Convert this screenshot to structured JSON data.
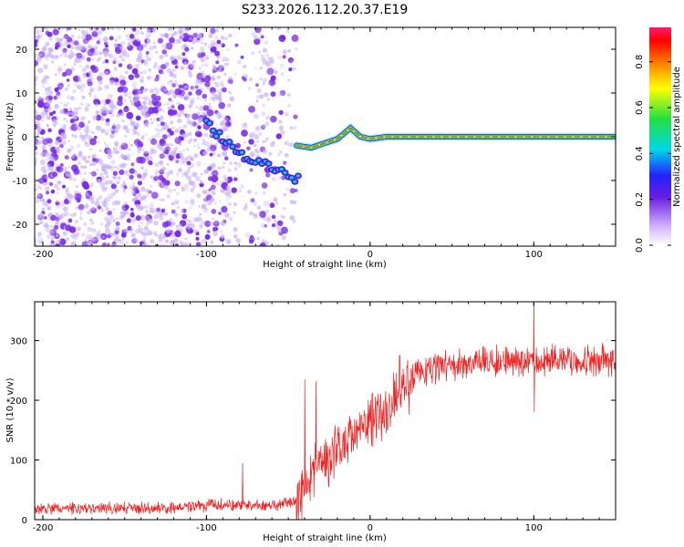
{
  "title": "S233.2026.112.20.37.E19",
  "colors": {
    "snr_line": "#ee2222",
    "dots": "#7a2ae8",
    "dots_light": "#c9b3f5",
    "ridge_hot": "#ee2222",
    "ridge_mid": "#ffe000",
    "ridge_cool": "#21e05a",
    "ridge_edge": "#10c8d8"
  },
  "chart_data": [
    {
      "type": "heatmap",
      "name": "spectrogram",
      "xlabel": "Height of straight line (km)",
      "ylabel": "Frequency (Hz)",
      "xlim": [
        -205,
        150
      ],
      "ylim": [
        -25,
        25
      ],
      "xticks": [
        -200,
        -100,
        0,
        100
      ],
      "yticks": [
        -20,
        -10,
        0,
        10,
        20
      ],
      "noise_region_x": [
        -205,
        -45
      ],
      "noise_fade_x": [
        -110,
        -45
      ],
      "noise_gap_x": [
        -85,
        -73
      ],
      "ridge": [
        {
          "x": -100,
          "y": 3
        },
        {
          "x": -90,
          "y": 0
        },
        {
          "x": -80,
          "y": -4
        },
        {
          "x": -72,
          "y": -6
        },
        {
          "x": -62,
          "y": -7
        },
        {
          "x": -52,
          "y": -9
        },
        {
          "x": -42,
          "y": -9.5
        },
        {
          "x": -45,
          "y": -2
        },
        {
          "x": -36,
          "y": -2.5
        },
        {
          "x": -28,
          "y": -1.5
        },
        {
          "x": -20,
          "y": -0.5
        },
        {
          "x": -12,
          "y": 2
        },
        {
          "x": -6,
          "y": 0
        },
        {
          "x": 0,
          "y": -0.5
        },
        {
          "x": 10,
          "y": 0
        },
        {
          "x": 50,
          "y": 0
        },
        {
          "x": 100,
          "y": 0
        },
        {
          "x": 150,
          "y": 0
        }
      ],
      "colorbar": {
        "label": "Normalized spectral amplitude",
        "range": [
          0,
          0.95
        ],
        "ticks": [
          0.0,
          0.2,
          0.4,
          0.6,
          0.8
        ]
      }
    },
    {
      "type": "line",
      "name": "snr",
      "xlabel": "Height of straight line (km)",
      "ylabel": "SNR (10 * v/v)",
      "xlim": [
        -205,
        150
      ],
      "ylim": [
        0,
        365
      ],
      "xticks": [
        -200,
        -100,
        0,
        100
      ],
      "yticks": [
        0,
        100,
        200,
        300
      ],
      "trend": [
        {
          "x": -205,
          "y": 18
        },
        {
          "x": -120,
          "y": 20
        },
        {
          "x": -90,
          "y": 25
        },
        {
          "x": -60,
          "y": 22
        },
        {
          "x": -45,
          "y": 30
        },
        {
          "x": -38,
          "y": 60
        },
        {
          "x": -30,
          "y": 95
        },
        {
          "x": -20,
          "y": 120
        },
        {
          "x": -10,
          "y": 145
        },
        {
          "x": 0,
          "y": 165
        },
        {
          "x": 10,
          "y": 185
        },
        {
          "x": 20,
          "y": 220
        },
        {
          "x": 30,
          "y": 245
        },
        {
          "x": 45,
          "y": 258
        },
        {
          "x": 70,
          "y": 262
        },
        {
          "x": 100,
          "y": 268
        },
        {
          "x": 150,
          "y": 265
        }
      ],
      "spikes": [
        {
          "x": -40,
          "y": 235
        },
        {
          "x": -33,
          "y": 232
        },
        {
          "x": -78,
          "y": 95
        },
        {
          "x": 18,
          "y": 275
        },
        {
          "x": 100,
          "y": 362
        },
        {
          "x": 100.4,
          "y": 180
        }
      ]
    }
  ]
}
